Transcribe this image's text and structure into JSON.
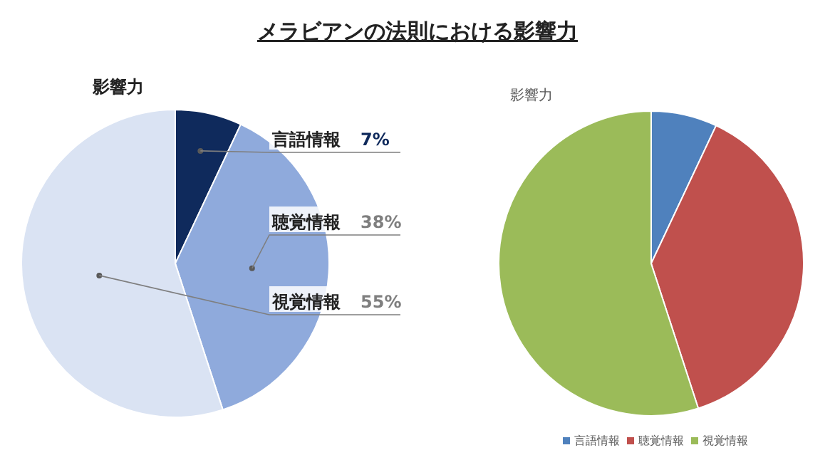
{
  "chart_data": [
    {
      "type": "pie",
      "title": "メラビアンの法則における影響力",
      "subtitle": "影響力",
      "categories": [
        "言語情報",
        "聴覚情報",
        "視覚情報"
      ],
      "values": [
        7,
        38,
        55
      ],
      "colors": [
        "#0f2a5c",
        "#8faadc",
        "#dae3f3"
      ],
      "value_labels": [
        "7%",
        "38%",
        "55%"
      ],
      "legend": false
    },
    {
      "type": "pie",
      "title": "影響力",
      "categories": [
        "言語情報",
        "聴覚情報",
        "視覚情報"
      ],
      "values": [
        7,
        38,
        55
      ],
      "colors": [
        "#4f81bd",
        "#c0504d",
        "#9bbb59"
      ],
      "legend": "bottom"
    }
  ]
}
